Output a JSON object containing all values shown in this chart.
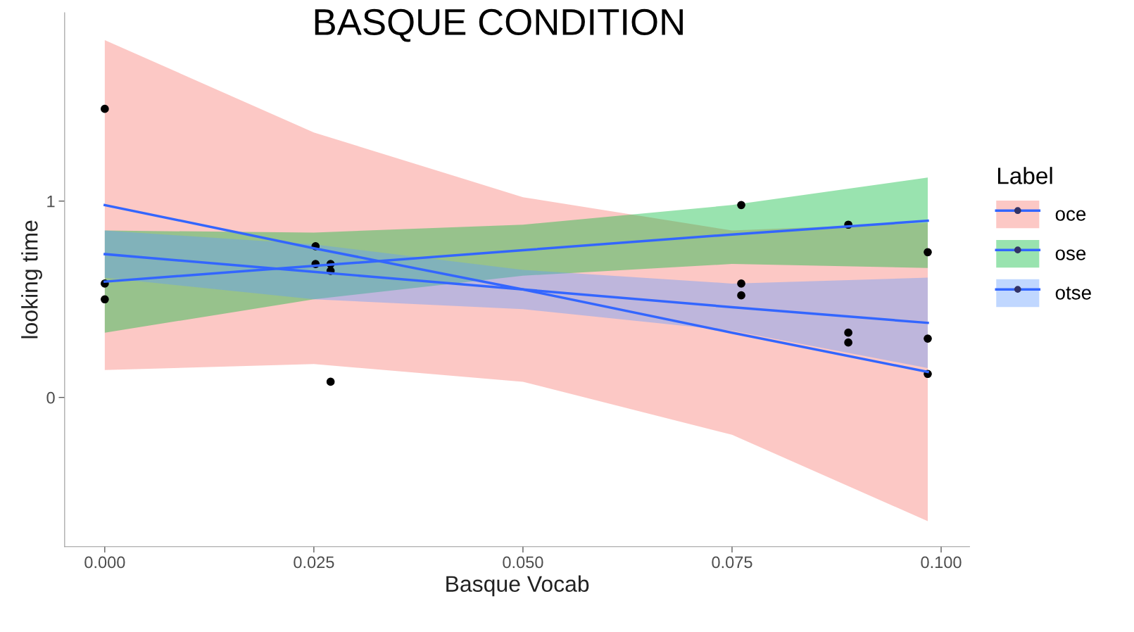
{
  "chart_data": {
    "type": "scatter",
    "title": "BASQUE CONDITION",
    "xlabel": "Basque Vocab",
    "ylabel": "looking time",
    "legend_title": "Label",
    "legend": "right",
    "grid": false,
    "xlim": [
      -0.0048,
      0.1034
    ],
    "xticks": [
      {
        "value": 0,
        "label": "0.000"
      },
      {
        "value": 0.025,
        "label": "0.025"
      },
      {
        "value": 0.05,
        "label": "0.050"
      },
      {
        "value": 0.075,
        "label": "0.075"
      },
      {
        "value": 0.1,
        "label": "0.100"
      }
    ],
    "ylim": [
      -0.76,
      1.96
    ],
    "yticks": [
      0,
      1
    ],
    "series": [
      {
        "type": "line",
        "name": "oce",
        "color": "#3366ff",
        "x": [
          0,
          0.025,
          0.05,
          0.075,
          0.0984
        ],
        "values": [
          0.98,
          0.76,
          0.55,
          0.33,
          0.13
        ],
        "lower": [
          0.14,
          0.17,
          0.08,
          -0.19,
          -0.63
        ],
        "upper": [
          1.82,
          1.35,
          1.02,
          0.85,
          0.89
        ]
      },
      {
        "type": "line",
        "name": "ose",
        "color": "#3366ff",
        "x": [
          0,
          0.025,
          0.05,
          0.075,
          0.0984
        ],
        "values": [
          0.59,
          0.67,
          0.75,
          0.83,
          0.9
        ],
        "lower": [
          0.33,
          0.5,
          0.62,
          0.68,
          0.66
        ],
        "upper": [
          0.85,
          0.84,
          0.88,
          0.98,
          1.12
        ]
      },
      {
        "type": "line",
        "name": "otse",
        "color": "#3366ff",
        "x": [
          0,
          0.025,
          0.05,
          0.075,
          0.0984
        ],
        "values": [
          0.73,
          0.64,
          0.55,
          0.46,
          0.38
        ],
        "lower": [
          0.61,
          0.5,
          0.45,
          0.34,
          0.15
        ],
        "upper": [
          0.85,
          0.78,
          0.65,
          0.58,
          0.61
        ]
      },
      {
        "marker": "circle",
        "color": "#000000",
        "x": [
          0,
          0,
          0,
          0.0252,
          0.0252,
          0.027,
          0.027,
          0.027,
          0.0761,
          0.0761,
          0.0761,
          0.0889,
          0.0889,
          0.0889,
          0.0984,
          0.0984,
          0.0984
        ],
        "values": [
          1.47,
          0.58,
          0.5,
          0.77,
          0.68,
          0.68,
          0.645,
          0.08,
          0.98,
          0.58,
          0.52,
          0.88,
          0.33,
          0.28,
          0.74,
          0.3,
          0.12
        ]
      }
    ]
  }
}
